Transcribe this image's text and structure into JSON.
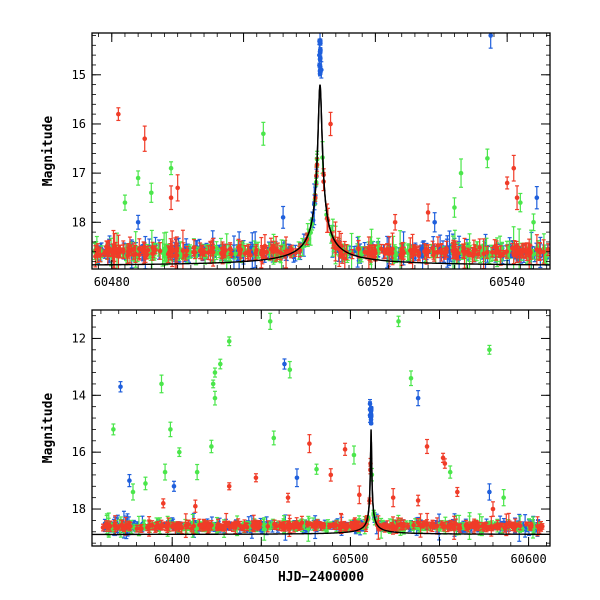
{
  "colors": {
    "blue": "#1f5fdc",
    "green": "#4be64b",
    "red": "#f03c28",
    "black": "#000000"
  },
  "chart_data": [
    {
      "type": "scatter",
      "title": "",
      "xlabel": "",
      "ylabel": "Magnitude",
      "xlim": [
        60477,
        60546.5
      ],
      "ylim": [
        18.95,
        14.15
      ],
      "y_inverted": true,
      "xticks": [
        60480,
        60500,
        60520,
        60540
      ],
      "yticks": [
        15,
        16,
        17,
        18
      ],
      "x_minor_step": 2,
      "y_minor_step": 0.2,
      "grid": false,
      "legend": "none",
      "baseline": 18.6,
      "model_curve": {
        "color": "black",
        "t0": 60511.6,
        "peak_mag": 15.2,
        "baseline": 18.9
      },
      "series": [
        {
          "color": "blue",
          "density": 0.9,
          "start": 60477.3,
          "end": 60546.3,
          "outliers": [
            [
              60511.6,
              14.3
            ],
            [
              60511.5,
              14.6
            ],
            [
              60511.8,
              14.9
            ],
            [
              60537.5,
              14.2
            ],
            [
              60544.5,
              17.5
            ],
            [
              60529,
              18.0
            ],
            [
              60506,
              17.9
            ],
            [
              60484,
              18.0
            ]
          ]
        },
        {
          "color": "green",
          "density": 0.9,
          "start": 60477.3,
          "end": 60546.3,
          "outliers": [
            [
              60503,
              16.2
            ],
            [
              60489,
              16.9
            ],
            [
              60484,
              17.1
            ],
            [
              60482,
              17.6
            ],
            [
              60537,
              16.7
            ],
            [
              60532,
              17.7
            ],
            [
              60533,
              17.0
            ],
            [
              60486,
              17.4
            ],
            [
              60542,
              17.6
            ],
            [
              60544,
              18.0
            ]
          ]
        },
        {
          "color": "red",
          "density": 0.9,
          "start": 60477.3,
          "end": 60546.3,
          "outliers": [
            [
              60481,
              15.8
            ],
            [
              60485,
              16.3
            ],
            [
              60489,
              17.5
            ],
            [
              60490,
              17.3
            ],
            [
              60513.2,
              16.0
            ],
            [
              60541,
              16.9
            ],
            [
              60540,
              17.2
            ],
            [
              60528,
              17.8
            ],
            [
              60523,
              18.0
            ],
            [
              60541.5,
              17.5
            ]
          ]
        }
      ]
    },
    {
      "type": "scatter",
      "title": "",
      "xlabel": "HJD−2400000",
      "ylabel": "Magnitude",
      "xlim": [
        60355,
        60612
      ],
      "ylim": [
        19.3,
        11.0
      ],
      "y_inverted": true,
      "xticks": [
        60400,
        60450,
        60500,
        60550,
        60600
      ],
      "yticks": [
        12,
        14,
        16,
        18
      ],
      "x_minor_step": 10,
      "y_minor_step": 0.4,
      "grid": false,
      "legend": "none",
      "baseline": 18.6,
      "model_curve": {
        "color": "black",
        "t0": 60511.6,
        "peak_mag": 15.2,
        "baseline": 18.9
      },
      "series": [
        {
          "color": "blue",
          "density": 0.85,
          "start": 60361,
          "end": 60608,
          "outliers": [
            [
              60371,
              13.7
            ],
            [
              60376,
              17.0
            ],
            [
              60463,
              12.9
            ],
            [
              60538,
              14.1
            ],
            [
              60511,
              14.3
            ],
            [
              60511,
              14.5
            ],
            [
              60511,
              14.7
            ],
            [
              60578,
              17.4
            ],
            [
              60470,
              16.9
            ],
            [
              60401,
              17.2
            ]
          ]
        },
        {
          "color": "green",
          "density": 0.85,
          "start": 60361,
          "end": 60608,
          "outliers": [
            [
              60455,
              11.4
            ],
            [
              60527,
              11.4
            ],
            [
              60432,
              12.1
            ],
            [
              60578,
              12.4
            ],
            [
              60427,
              12.9
            ],
            [
              60424,
              13.2
            ],
            [
              60423,
              13.6
            ],
            [
              60466,
              13.1
            ],
            [
              60394,
              13.6
            ],
            [
              60534,
              13.4
            ],
            [
              60424,
              14.1
            ],
            [
              60367,
              15.2
            ],
            [
              60399,
              15.2
            ],
            [
              60404,
              16.0
            ],
            [
              60457,
              15.5
            ],
            [
              60422,
              15.8
            ],
            [
              60396,
              16.7
            ],
            [
              60414,
              16.7
            ],
            [
              60481,
              16.6
            ],
            [
              60502,
              16.1
            ],
            [
              60385,
              17.1
            ],
            [
              60378,
              17.4
            ],
            [
              60556,
              16.7
            ],
            [
              60586,
              17.6
            ]
          ]
        },
        {
          "color": "red",
          "density": 0.85,
          "start": 60361,
          "end": 60608,
          "outliers": [
            [
              60477,
              15.7
            ],
            [
              60497,
              15.9
            ],
            [
              60543,
              15.8
            ],
            [
              60553,
              16.4
            ],
            [
              60552,
              16.2
            ],
            [
              60489,
              16.8
            ],
            [
              60432,
              17.2
            ],
            [
              60447,
              16.9
            ],
            [
              60465,
              17.6
            ],
            [
              60524,
              17.6
            ],
            [
              60538,
              17.7
            ],
            [
              60505,
              17.5
            ],
            [
              60413,
              17.9
            ],
            [
              60395,
              17.8
            ],
            [
              60560,
              17.4
            ],
            [
              60580,
              18.0
            ]
          ]
        }
      ]
    }
  ]
}
